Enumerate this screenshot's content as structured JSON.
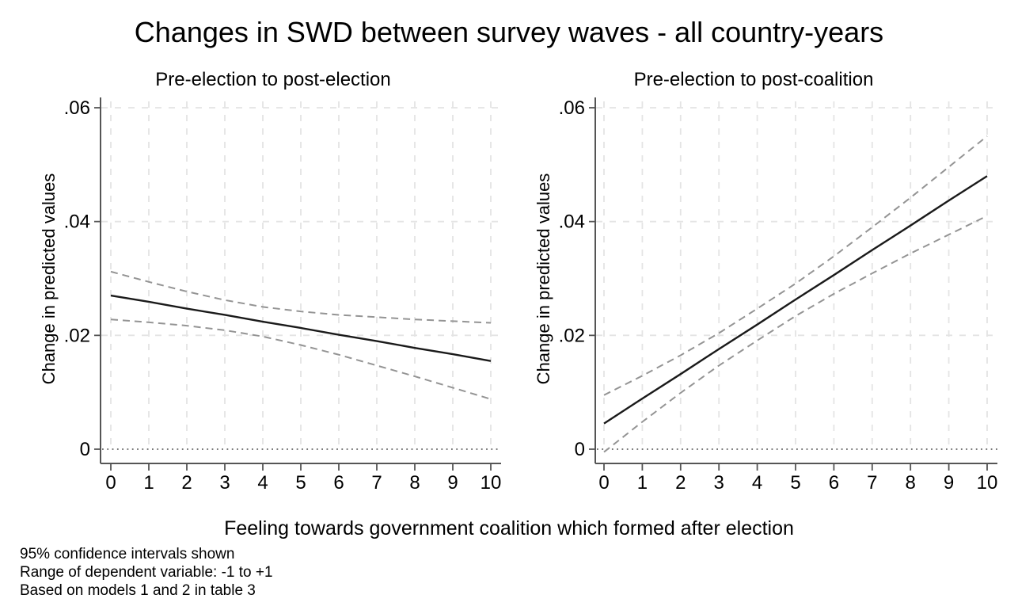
{
  "title": "Changes in SWD between survey waves - all country-years",
  "xlabel": "Feeling towards government coalition which formed after election",
  "notes": [
    "95% confidence intervals shown",
    "Range of dependent variable: -1 to +1",
    "Based on models 1 and 2 in table 3"
  ],
  "colors": {
    "fit_line": "#1a1a1a",
    "ci_line": "#949494",
    "grid_line": "#e4e4e4",
    "zero_line": "#4a4a4a",
    "axis": "#555555",
    "text": "#000000",
    "background": "#ffffff"
  },
  "chart_data": [
    {
      "type": "line",
      "title": "Pre-election to post-election",
      "ylabel": "Change in predicted values",
      "xlabel": "Feeling towards government coalition which formed after election",
      "xlim": [
        0,
        10
      ],
      "ylim": [
        0,
        0.06
      ],
      "x_ticks": [
        0,
        1,
        2,
        3,
        4,
        5,
        6,
        7,
        8,
        9,
        10
      ],
      "y_ticks": [
        {
          "value": 0,
          "label": "0"
        },
        {
          "value": 0.02,
          "label": ".02"
        },
        {
          "value": 0.04,
          "label": ".04"
        },
        {
          "value": 0.06,
          "label": ".06"
        }
      ],
      "grid": true,
      "legend": "none",
      "zero_reference_line": true,
      "x": [
        0,
        1,
        2,
        3,
        4,
        5,
        6,
        7,
        8,
        9,
        10
      ],
      "series": [
        {
          "name": "predicted change",
          "style": "solid",
          "values": [
            0.027,
            0.0259,
            0.0247,
            0.0236,
            0.0224,
            0.0213,
            0.0201,
            0.019,
            0.0178,
            0.0167,
            0.0155
          ]
        },
        {
          "name": "95% CI upper",
          "style": "dashed",
          "values": [
            0.0312,
            0.0294,
            0.0277,
            0.0262,
            0.025,
            0.0242,
            0.0236,
            0.0232,
            0.0228,
            0.0225,
            0.0222
          ]
        },
        {
          "name": "95% CI lower",
          "style": "dashed",
          "values": [
            0.0228,
            0.0223,
            0.0217,
            0.0209,
            0.0198,
            0.0183,
            0.0166,
            0.0147,
            0.0128,
            0.0108,
            0.0088
          ]
        }
      ]
    },
    {
      "type": "line",
      "title": "Pre-election to post-coalition",
      "ylabel": "Change in predicted values",
      "xlabel": "Feeling towards government coalition which formed after election",
      "xlim": [
        0,
        10
      ],
      "ylim": [
        0,
        0.06
      ],
      "x_ticks": [
        0,
        1,
        2,
        3,
        4,
        5,
        6,
        7,
        8,
        9,
        10
      ],
      "y_ticks": [
        {
          "value": 0,
          "label": "0"
        },
        {
          "value": 0.02,
          "label": ".02"
        },
        {
          "value": 0.04,
          "label": ".04"
        },
        {
          "value": 0.06,
          "label": ".06"
        }
      ],
      "grid": true,
      "legend": "none",
      "zero_reference_line": true,
      "x": [
        0,
        1,
        2,
        3,
        4,
        5,
        6,
        7,
        8,
        9,
        10
      ],
      "series": [
        {
          "name": "predicted change",
          "style": "solid",
          "values": [
            0.0045,
            0.0089,
            0.0132,
            0.0176,
            0.0219,
            0.0263,
            0.0306,
            0.035,
            0.0393,
            0.0437,
            0.048
          ]
        },
        {
          "name": "95% CI upper",
          "style": "dashed",
          "values": [
            0.0095,
            0.0129,
            0.0165,
            0.0204,
            0.0247,
            0.0291,
            0.0339,
            0.039,
            0.0442,
            0.0496,
            0.055
          ]
        },
        {
          "name": "95% CI lower",
          "style": "dashed",
          "values": [
            -0.0005,
            0.0048,
            0.0099,
            0.0147,
            0.0191,
            0.0234,
            0.0273,
            0.0309,
            0.0344,
            0.0377,
            0.041
          ]
        }
      ]
    }
  ]
}
